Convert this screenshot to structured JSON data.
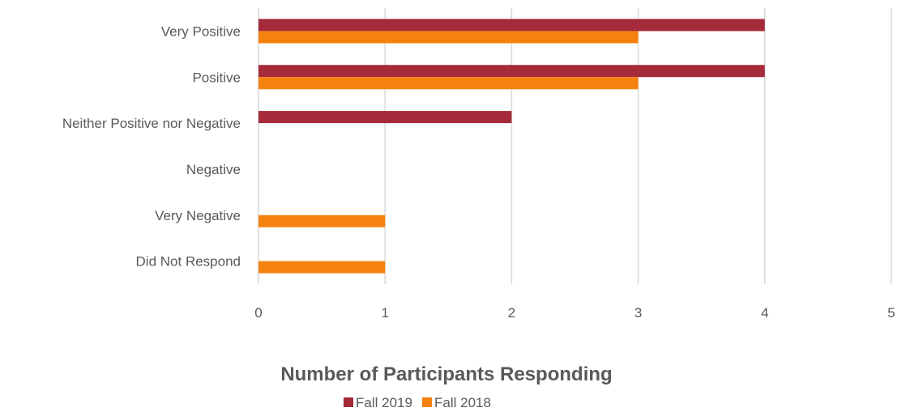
{
  "chart_data": {
    "type": "bar",
    "orientation": "horizontal",
    "categories": [
      "Very Positive",
      "Positive",
      "Neither Positive nor Negative",
      "Negative",
      "Very Negative",
      "Did Not Respond"
    ],
    "series": [
      {
        "name": "Fall 2019",
        "values": [
          4,
          4,
          2,
          0,
          0,
          0
        ],
        "color": "#A52A3A"
      },
      {
        "name": "Fall 2018",
        "values": [
          3,
          3,
          0,
          0,
          1,
          1
        ],
        "color": "#F5820F"
      }
    ],
    "xlabel": "Number of Participants Responding",
    "xlim": [
      0,
      5
    ],
    "xticks": [
      "0",
      "1",
      "2",
      "3",
      "4",
      "5"
    ],
    "grid": true,
    "legend": "bottom"
  }
}
